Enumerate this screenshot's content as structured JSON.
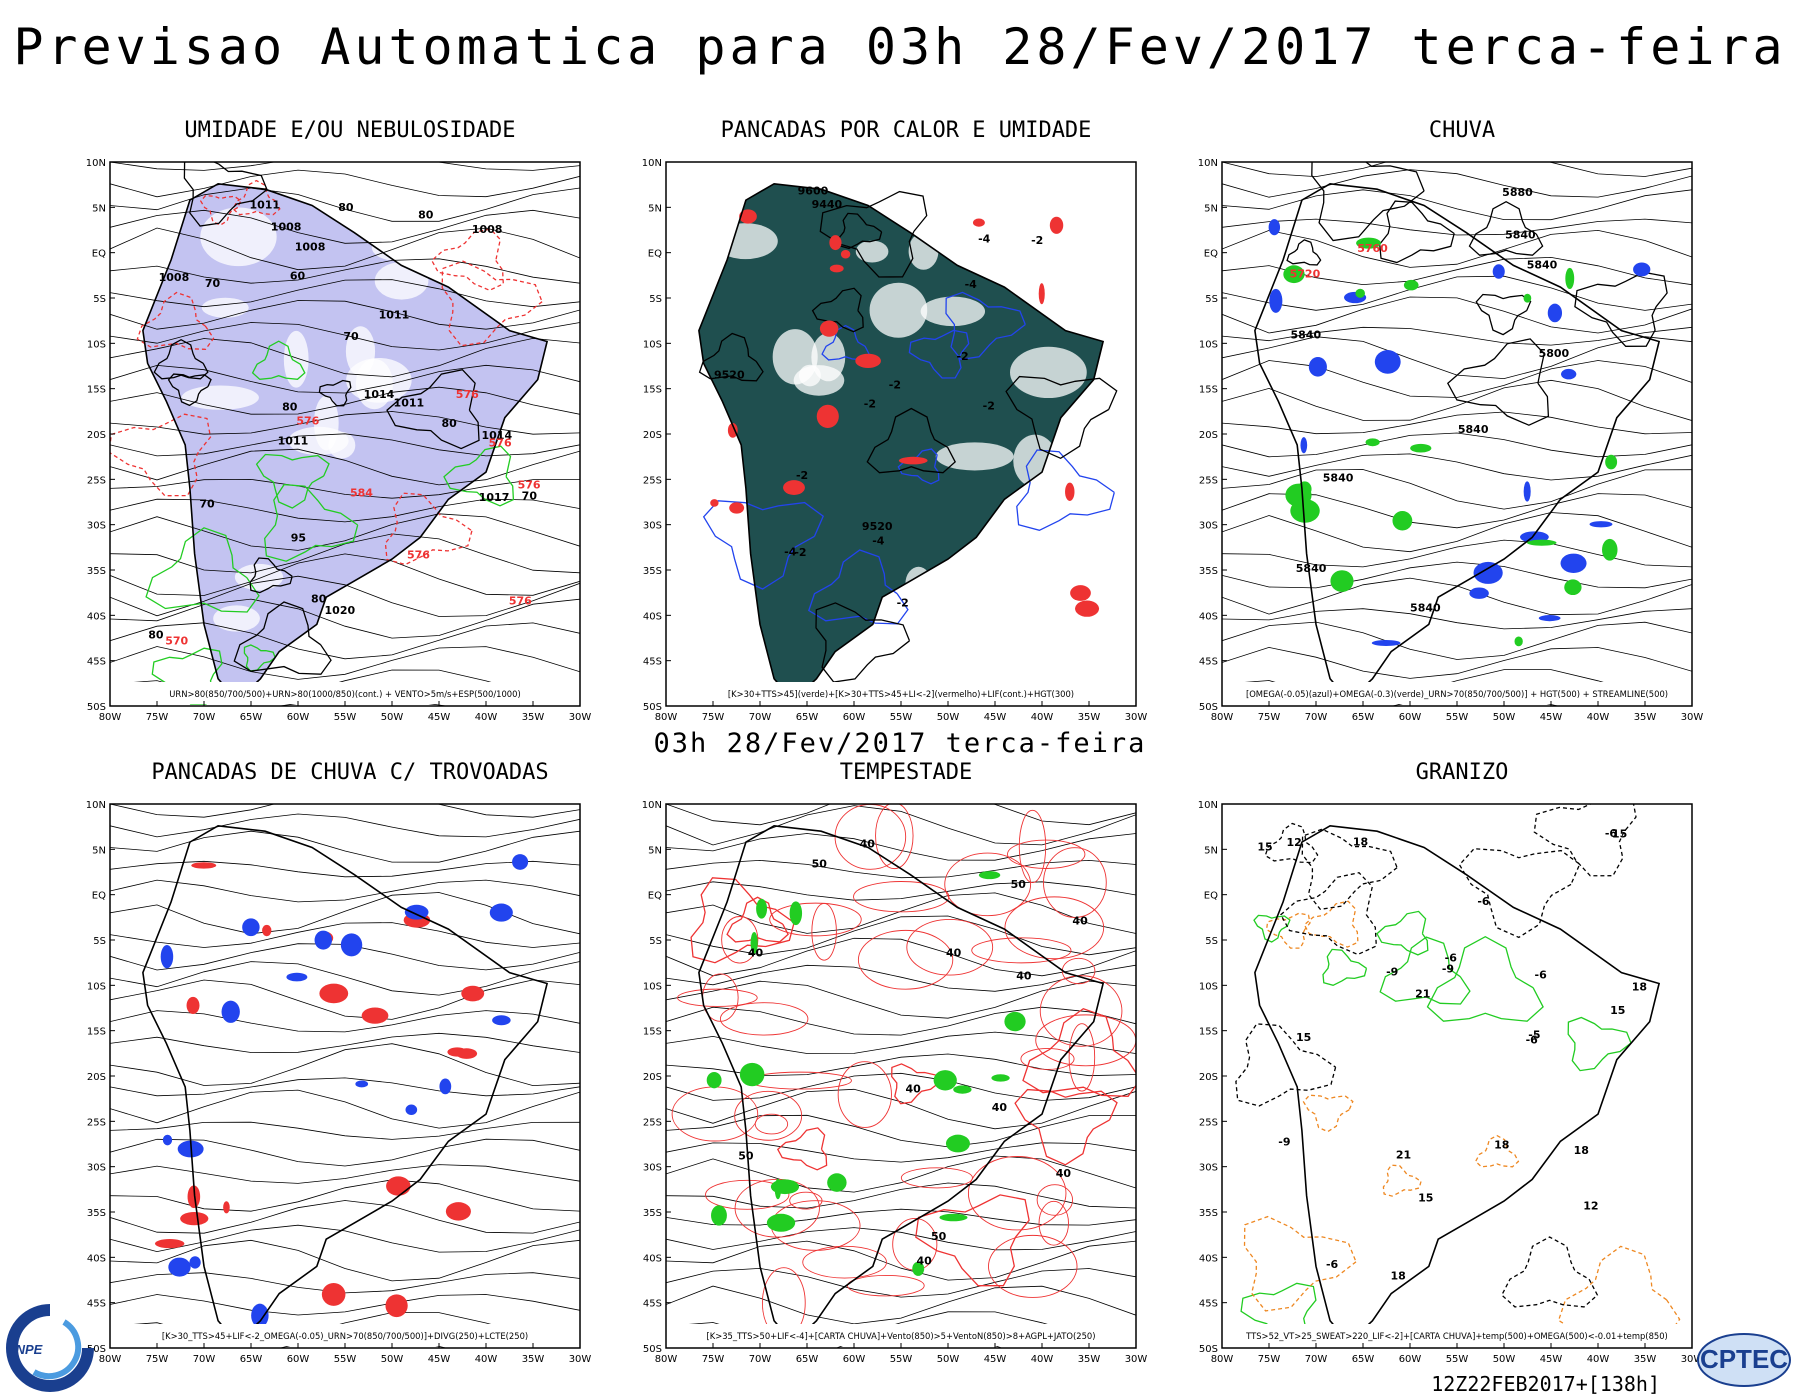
{
  "header": {
    "title": "Previsao Automatica  para 03h 28/Fev/2017 terca-feira"
  },
  "mid_title": "03h 28/Fev/2017 terca-feira",
  "footer": {
    "stamp": "12Z22FEB2017+[138h]"
  },
  "logos": {
    "inpe": "INPE",
    "cptec": "CPTEC"
  },
  "colors": {
    "blue": "#2244ee",
    "green": "#22cc22",
    "red": "#ee3333",
    "teal": "#1f4f4f",
    "lavender": "#b8b8ee",
    "orange": "#ee8822",
    "black": "#000000"
  },
  "axes": {
    "lat_labels": [
      "10N",
      "5N",
      "EQ",
      "5S",
      "10S",
      "15S",
      "20S",
      "25S",
      "30S",
      "35S",
      "40S",
      "45S",
      "50S"
    ],
    "lon_labels": [
      "80W",
      "75W",
      "70W",
      "65W",
      "60W",
      "55W",
      "50W",
      "45W",
      "40W",
      "35W",
      "30W"
    ]
  },
  "panels": [
    {
      "title": "UMIDADE E/OU NEBULOSIDADE",
      "legend": "URN>80(850/700/500)+URN>80(1000/850)(cont.) + VENTO>5m/s+ESP(500/1000)",
      "labels": [
        "1011",
        "1008",
        "1008",
        "1008",
        "1011",
        "1014",
        "1011",
        "1014",
        "1008",
        "1017",
        "1020",
        "1011",
        "576",
        "576",
        "576",
        "576",
        "576",
        "576",
        "570",
        "584",
        "95",
        "80",
        "80",
        "80",
        "80",
        "70",
        "70",
        "70",
        "70",
        "80",
        "80",
        "60"
      ]
    },
    {
      "title": "PANCADAS POR CALOR E UMIDADE",
      "legend": "[K>30+TTS>45](verde)+[K>30+TTS>45+LI<-2](vermelho)+LIF(cont.)+HGT(300)",
      "labels": [
        "-2",
        "-2",
        "-2",
        "-2",
        "-2",
        "-2",
        "-2",
        "-2",
        "-4",
        "-4",
        "-4",
        "-4",
        "9520",
        "9600",
        "9520",
        "9440"
      ]
    },
    {
      "title": "CHUVA",
      "legend": "[OMEGA(-0.05)(azul)+OMEGA(-0.3)(verde)_URN>70(850/700/500)] + HGT(500) + STREAMLINE(500)",
      "labels": [
        "5840",
        "5840",
        "5840",
        "5880",
        "5840",
        "5840",
        "5840",
        "5840",
        "5800",
        "5760",
        "5720"
      ]
    },
    {
      "title": "PANCADAS DE CHUVA C/ TROVOADAS",
      "legend": "[K>30_TTS>45+LIF<-2_OMEGA(-0.05)_URN>70(850/700/500)]+DIVG(250)+LCTE(250)",
      "labels": []
    },
    {
      "title": "TEMPESTADE",
      "legend": "[K>35_TTS>50+LIF<-4]+[CARTA CHUVA]+Vento(850)>5+VentoN(850)>8+AGPL+JATO(250)",
      "labels": [
        "40",
        "40",
        "40",
        "40",
        "40",
        "50",
        "50",
        "50",
        "50",
        "40",
        "40",
        "40",
        "40"
      ]
    },
    {
      "title": "GRANIZO",
      "legend": "TTS>52_VT>25_SWEAT>220_LIF<-2]+[CARTA CHUVA]+temp(500)+OMEGA(500)<-0.01+temp(850)",
      "labels": [
        "-6",
        "-6",
        "-6",
        "-6",
        "-6",
        "-6",
        "-9",
        "-9",
        "-9",
        "-5",
        "18",
        "18",
        "18",
        "18",
        "21",
        "21",
        "15",
        "15",
        "15",
        "12",
        "12",
        "18",
        "15",
        "15"
      ]
    }
  ]
}
